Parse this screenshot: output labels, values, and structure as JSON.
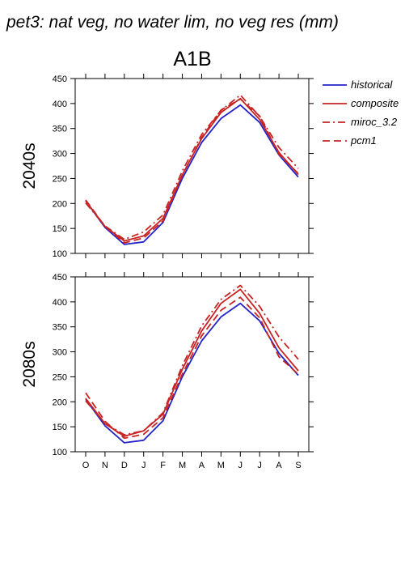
{
  "header": {
    "title": "pet3: nat veg, no water lim, no veg res (mm)",
    "scenario": "A1B"
  },
  "legend": {
    "placement": "right",
    "entries": [
      {
        "label": "historical",
        "color": "#2323c8",
        "dash": "solid"
      },
      {
        "label": "composite",
        "color": "#c82323",
        "dash": "solid"
      },
      {
        "label": "miroc_3.2",
        "color": "#c82323",
        "dash": "dashdot"
      },
      {
        "label": "pcm1",
        "color": "#c82323",
        "dash": "dashed"
      }
    ]
  },
  "chart_data": [
    {
      "type": "line",
      "ylabel": "2040s",
      "xlabel": "",
      "ylim": [
        100,
        450
      ],
      "yticks": [
        100,
        150,
        200,
        250,
        300,
        350,
        400,
        450
      ],
      "categories": [
        "O",
        "N",
        "D",
        "J",
        "F",
        "M",
        "A",
        "M",
        "J",
        "J",
        "A",
        "S"
      ],
      "grid": false,
      "series": [
        {
          "name": "historical",
          "color": "#2323c8",
          "dash": "solid",
          "values": [
            205,
            152,
            118,
            123,
            162,
            250,
            322,
            370,
            397,
            362,
            297,
            253
          ]
        },
        {
          "name": "composite",
          "color": "#c82323",
          "dash": "solid",
          "values": [
            205,
            154,
            125,
            135,
            170,
            257,
            330,
            382,
            410,
            368,
            302,
            258
          ]
        },
        {
          "name": "miroc_3.2",
          "color": "#c82323",
          "dash": "dashdot",
          "values": [
            201,
            155,
            128,
            143,
            177,
            265,
            338,
            386,
            417,
            374,
            312,
            270
          ]
        },
        {
          "name": "pcm1",
          "color": "#c82323",
          "dash": "dashed",
          "values": [
            207,
            154,
            121,
            131,
            165,
            256,
            332,
            387,
            409,
            375,
            298,
            260
          ]
        }
      ]
    },
    {
      "type": "line",
      "ylabel": "2080s",
      "xlabel": "",
      "ylim": [
        100,
        450
      ],
      "yticks": [
        100,
        150,
        200,
        250,
        300,
        350,
        400,
        450
      ],
      "categories": [
        "O",
        "N",
        "D",
        "J",
        "F",
        "M",
        "A",
        "M",
        "J",
        "J",
        "A",
        "S"
      ],
      "grid": false,
      "series": [
        {
          "name": "historical",
          "color": "#2323c8",
          "dash": "solid",
          "values": [
            205,
            152,
            118,
            123,
            162,
            250,
            322,
            370,
            397,
            362,
            297,
            253
          ]
        },
        {
          "name": "composite",
          "color": "#c82323",
          "dash": "solid",
          "values": [
            207,
            156,
            131,
            142,
            175,
            265,
            342,
            397,
            425,
            377,
            308,
            262
          ]
        },
        {
          "name": "miroc_3.2",
          "color": "#c82323",
          "dash": "dashdot",
          "values": [
            202,
            157,
            134,
            142,
            178,
            272,
            352,
            405,
            433,
            391,
            330,
            285
          ]
        },
        {
          "name": "pcm1",
          "color": "#c82323",
          "dash": "dashed",
          "values": [
            218,
            161,
            127,
            135,
            168,
            255,
            332,
            383,
            409,
            368,
            290,
            255
          ]
        }
      ]
    }
  ]
}
